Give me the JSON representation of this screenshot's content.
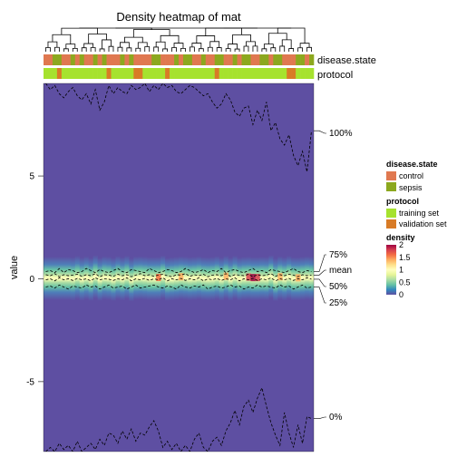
{
  "chart_data": {
    "type": "heatmap",
    "title": "Density heatmap of mat",
    "ylabel": "value",
    "ylim": [
      -8.4,
      9.5
    ],
    "y_ticks": [
      {
        "value": 5,
        "label": "5"
      },
      {
        "value": 0,
        "label": "0"
      },
      {
        "value": -5,
        "label": "-5"
      }
    ],
    "n_columns": 60,
    "annotations": [
      {
        "name": "disease.state",
        "values": [
          "control",
          "control",
          "sepsis",
          "sepsis",
          "control",
          "control",
          "sepsis",
          "control",
          "sepsis",
          "control",
          "control",
          "sepsis",
          "control",
          "sepsis",
          "control",
          "control",
          "control",
          "sepsis",
          "control",
          "sepsis",
          "control",
          "control",
          "control",
          "control",
          "sepsis",
          "sepsis",
          "control",
          "control",
          "control",
          "sepsis",
          "control",
          "sepsis",
          "sepsis",
          "control",
          "control",
          "sepsis",
          "control",
          "control",
          "sepsis",
          "sepsis",
          "control",
          "control",
          "sepsis",
          "control",
          "sepsis",
          "sepsis",
          "control",
          "control",
          "sepsis",
          "sepsis",
          "control",
          "sepsis",
          "sepsis",
          "control",
          "control",
          "control",
          "sepsis",
          "sepsis",
          "control",
          "sepsis"
        ]
      },
      {
        "name": "protocol",
        "values": [
          "training set",
          "training set",
          "training set",
          "validation set",
          "training set",
          "training set",
          "training set",
          "training set",
          "training set",
          "training set",
          "training set",
          "training set",
          "training set",
          "training set",
          "validation set",
          "training set",
          "training set",
          "training set",
          "training set",
          "training set",
          "validation set",
          "validation set",
          "training set",
          "training set",
          "training set",
          "training set",
          "training set",
          "validation set",
          "training set",
          "training set",
          "training set",
          "training set",
          "training set",
          "training set",
          "training set",
          "training set",
          "training set",
          "training set",
          "validation set",
          "training set",
          "training set",
          "training set",
          "training set",
          "training set",
          "training set",
          "training set",
          "training set",
          "training set",
          "training set",
          "training set",
          "training set",
          "training set",
          "training set",
          "training set",
          "validation set",
          "validation set",
          "training set",
          "training set",
          "training set",
          "training set"
        ]
      }
    ],
    "quantile_lines": [
      {
        "label": "100%",
        "values": [
          9.5,
          9.2,
          9.4,
          9.0,
          8.8,
          9.1,
          9.3,
          8.9,
          8.7,
          9.0,
          8.5,
          9.2,
          8.2,
          8.6,
          9.4,
          9.0,
          9.3,
          9.1,
          9.0,
          9.4,
          9.2,
          9.3,
          9.5,
          9.1,
          9.4,
          9.2,
          9.5,
          9.3,
          9.4,
          9.1,
          9.0,
          9.2,
          9.4,
          9.3,
          9.1,
          8.9,
          9.0,
          8.6,
          8.3,
          8.5,
          9.0,
          8.7,
          8.1,
          7.9,
          8.3,
          8.4,
          7.5,
          8.2,
          7.7,
          8.6,
          7.2,
          7.6,
          6.8,
          6.5,
          7.0,
          6.0,
          5.5,
          6.2,
          5.2,
          7.2
        ]
      },
      {
        "label": "75%",
        "values": [
          0.35,
          0.4,
          0.3,
          0.5,
          0.3,
          0.45,
          0.4,
          0.3,
          0.35,
          0.5,
          0.4,
          0.3,
          0.45,
          0.35,
          0.3,
          0.4,
          0.5,
          0.35,
          0.3,
          0.45,
          0.4,
          0.35,
          0.3,
          0.5,
          0.4,
          0.3,
          0.35,
          0.45,
          0.4,
          0.3,
          0.35,
          0.5,
          0.4,
          0.3,
          0.35,
          0.45,
          0.3,
          0.4,
          0.35,
          0.5,
          0.3,
          0.4,
          0.45,
          0.35,
          0.3,
          0.4,
          0.5,
          0.35,
          0.4,
          0.3,
          0.45,
          0.4,
          0.35,
          0.3,
          0.4,
          0.5,
          0.35,
          0.3,
          0.4,
          0.35
        ]
      },
      {
        "label": "mean",
        "values": [
          0.2,
          0.15,
          0.25,
          0.1,
          0.2,
          0.15,
          0.18,
          0.22,
          0.12,
          0.2,
          0.15,
          0.25,
          0.1,
          0.2,
          0.18,
          0.12,
          0.22,
          0.15,
          0.2,
          0.1,
          0.18,
          0.25,
          0.15,
          0.2,
          0.12,
          0.18,
          0.22,
          0.15,
          0.1,
          0.2,
          0.18,
          0.25,
          0.12,
          0.2,
          0.15,
          0.22,
          0.1,
          0.18,
          0.2,
          0.15,
          0.25,
          0.12,
          0.2,
          0.18,
          0.15,
          0.22,
          0.1,
          0.2,
          0.15,
          0.18,
          0.25,
          0.12,
          0.2,
          0.15,
          0.22,
          0.18,
          0.1,
          0.2,
          0.15,
          0.18
        ]
      },
      {
        "label": "50%",
        "values": [
          -0.05,
          0.0,
          -0.1,
          0.05,
          -0.05,
          0.0,
          -0.08,
          0.02,
          -0.05,
          0.0,
          -0.1,
          0.05,
          -0.05,
          0.0,
          -0.02,
          -0.08,
          0.0,
          -0.05,
          0.05,
          -0.1,
          0.0,
          -0.05,
          0.02,
          -0.08,
          0.0,
          -0.05,
          0.05,
          -0.1,
          0.0,
          -0.05,
          0.02,
          -0.08,
          0.0,
          -0.05,
          0.05,
          -0.1,
          0.0,
          -0.05,
          0.02,
          -0.08,
          0.0,
          -0.05,
          0.05,
          -0.1,
          0.0,
          -0.05,
          0.02,
          -0.08,
          0.0,
          -0.05,
          0.05,
          -0.1,
          0.0,
          -0.05,
          0.02,
          -0.08,
          0.0,
          -0.05,
          0.05,
          -0.02
        ]
      },
      {
        "label": "25%",
        "values": [
          -0.4,
          -0.35,
          -0.45,
          -0.3,
          -0.4,
          -0.5,
          -0.35,
          -0.4,
          -0.45,
          -0.3,
          -0.4,
          -0.35,
          -0.5,
          -0.4,
          -0.3,
          -0.45,
          -0.4,
          -0.35,
          -0.5,
          -0.4,
          -0.3,
          -0.45,
          -0.4,
          -0.35,
          -0.3,
          -0.4,
          -0.45,
          -0.35,
          -0.4,
          -0.5,
          -0.3,
          -0.4,
          -0.45,
          -0.35,
          -0.4,
          -0.3,
          -0.5,
          -0.4,
          -0.35,
          -0.45,
          -0.4,
          -0.3,
          -0.4,
          -0.35,
          -0.5,
          -0.4,
          -0.45,
          -0.3,
          -0.4,
          -0.35,
          -0.4,
          -0.45,
          -0.3,
          -0.4,
          -0.35,
          -0.5,
          -0.4,
          -0.3,
          -0.45,
          -0.4
        ]
      },
      {
        "label": "0%",
        "values": [
          -8.4,
          -8.2,
          -8.4,
          -8.0,
          -8.3,
          -8.1,
          -8.4,
          -7.9,
          -8.4,
          -8.2,
          -8.0,
          -8.3,
          -7.8,
          -8.1,
          -7.5,
          -7.6,
          -8.0,
          -7.4,
          -7.8,
          -7.3,
          -7.9,
          -7.5,
          -7.6,
          -7.2,
          -6.9,
          -7.4,
          -8.2,
          -7.9,
          -8.3,
          -8.0,
          -8.4,
          -8.1,
          -8.4,
          -7.8,
          -7.5,
          -8.2,
          -8.4,
          -7.9,
          -7.7,
          -8.1,
          -7.4,
          -7.0,
          -6.4,
          -7.1,
          -6.2,
          -5.9,
          -6.5,
          -5.8,
          -5.3,
          -6.2,
          -7.0,
          -7.6,
          -8.1,
          -6.5,
          -7.5,
          -8.2,
          -7.1,
          -8.0,
          -6.7,
          -6.8
        ]
      }
    ],
    "density_legend": {
      "title": "density",
      "ticks": [
        {
          "value": 2,
          "label": "2"
        },
        {
          "value": 1.5,
          "label": "1.5"
        },
        {
          "value": 1,
          "label": "1"
        },
        {
          "value": 0.5,
          "label": "0.5"
        },
        {
          "value": 0,
          "label": "0"
        }
      ]
    }
  },
  "legends": {
    "disease_state": {
      "title": "disease.state",
      "items": [
        {
          "label": "control",
          "color": "#E07850"
        },
        {
          "label": "sepsis",
          "color": "#8CA81E"
        }
      ]
    },
    "protocol": {
      "title": "protocol",
      "items": [
        {
          "label": "training set",
          "color": "#A6E22E"
        },
        {
          "label": "validation set",
          "color": "#D87B26"
        }
      ]
    }
  },
  "colors": {
    "heatmap_background": "#5E4FA2",
    "density_ramp": [
      "#5E4FA2",
      "#3288BD",
      "#66C2A5",
      "#ABDDA4",
      "#E6F598",
      "#FFFFBF",
      "#FEE08B",
      "#FDAE61",
      "#F46D43",
      "#D53E4F",
      "#9E0142"
    ],
    "control": "#E07850",
    "sepsis": "#8CA81E",
    "training": "#A6E22E",
    "validation": "#D87B26"
  }
}
